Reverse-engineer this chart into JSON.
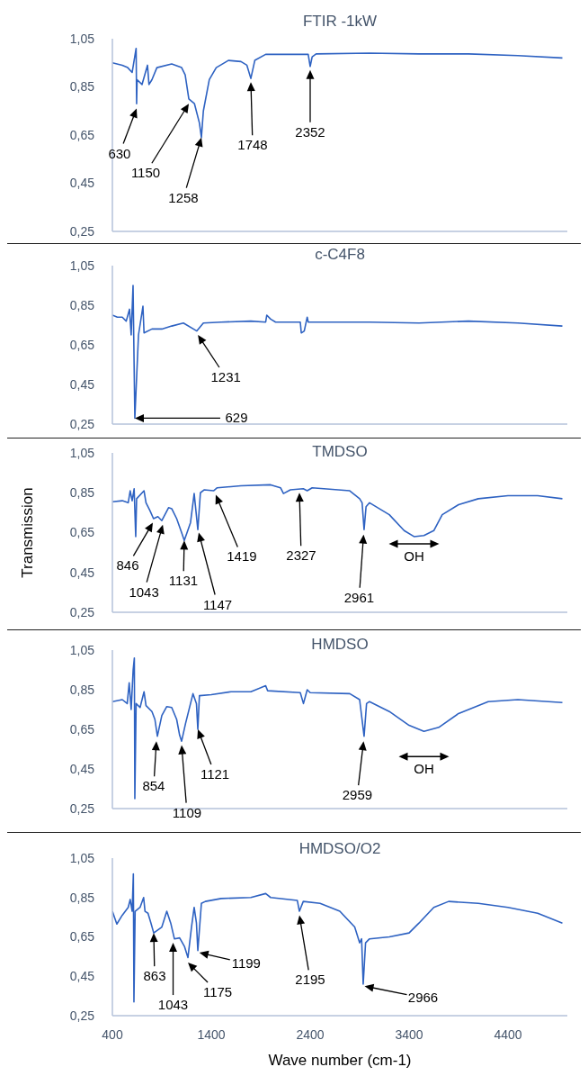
{
  "chart_data": [
    {
      "type": "line",
      "title": "FTIR -1kW",
      "color": "#2e62c2",
      "marker": "none",
      "line_style": "solid",
      "tick_labels": "y",
      "x": [
        400,
        500,
        555,
        600,
        640,
        645,
        650,
        700,
        755,
        770,
        800,
        850,
        1000,
        1100,
        1136,
        1173,
        1230,
        1280,
        1300,
        1320,
        1380,
        1450,
        1573,
        1700,
        1760,
        1800,
        1840,
        1950,
        2380,
        2400,
        2420,
        2460,
        3000,
        3500,
        4000,
        4500,
        4950
      ],
      "values": [
        0.95,
        0.94,
        0.93,
        0.91,
        1.01,
        0.78,
        0.88,
        0.86,
        0.94,
        0.86,
        0.88,
        0.93,
        0.945,
        0.93,
        0.9,
        0.8,
        0.78,
        0.7,
        0.64,
        0.75,
        0.88,
        0.93,
        0.96,
        0.955,
        0.94,
        0.885,
        0.96,
        0.985,
        0.985,
        0.935,
        0.975,
        0.987,
        0.99,
        0.987,
        0.987,
        0.98,
        0.97
      ],
      "xlim": [
        400,
        5000
      ],
      "ylim": [
        0.25,
        1.05
      ],
      "yticks": [
        {
          "value": 0.25,
          "label": "0,25"
        },
        {
          "value": 0.45,
          "label": "0,45"
        },
        {
          "value": 0.65,
          "label": "0,65"
        },
        {
          "value": 0.85,
          "label": "0,85"
        },
        {
          "value": 1.05,
          "label": "1,05"
        }
      ],
      "annotations": [
        {
          "text": "630",
          "x": 645,
          "y": 0.76
        },
        {
          "text": "1150",
          "x": 1173,
          "y": 0.78
        },
        {
          "text": "1258",
          "x": 1300,
          "y": 0.64
        },
        {
          "text": "1748",
          "x": 1800,
          "y": 0.87
        },
        {
          "text": "2352",
          "x": 2400,
          "y": 0.92
        }
      ]
    },
    {
      "type": "line",
      "title": "c-C4F8",
      "color": "#2e62c2",
      "marker": "none",
      "line_style": "solid",
      "tick_labels": "y",
      "x": [
        400,
        450,
        500,
        540,
        573,
        590,
        609,
        627,
        664,
        709,
        720,
        800,
        900,
        1000,
        1118,
        1254,
        1320,
        1500,
        1800,
        1950,
        1961,
        2000,
        2050,
        2300,
        2310,
        2340,
        2370,
        2380,
        3000,
        3500,
        4000,
        4500,
        4950
      ],
      "values": [
        0.8,
        0.79,
        0.79,
        0.77,
        0.83,
        0.7,
        0.95,
        0.28,
        0.7,
        0.845,
        0.71,
        0.73,
        0.73,
        0.745,
        0.76,
        0.72,
        0.76,
        0.765,
        0.77,
        0.765,
        0.8,
        0.78,
        0.765,
        0.765,
        0.71,
        0.72,
        0.79,
        0.765,
        0.765,
        0.76,
        0.77,
        0.76,
        0.745
      ],
      "xlim": [
        400,
        5000
      ],
      "ylim": [
        0.25,
        1.05
      ],
      "yticks": [
        {
          "value": 0.25,
          "label": "0,25"
        },
        {
          "value": 0.45,
          "label": "0,45"
        },
        {
          "value": 0.65,
          "label": "0,65"
        },
        {
          "value": 0.85,
          "label": "0,85"
        },
        {
          "value": 1.05,
          "label": "1,05"
        }
      ],
      "annotations": [
        {
          "text": "1231",
          "x": 1265,
          "y": 0.7
        },
        {
          "text": "629",
          "x": 627,
          "y": 0.28
        }
      ]
    },
    {
      "type": "line",
      "title": "TMDSO",
      "ylabel": "Transmission",
      "color": "#2e62c2",
      "marker": "none",
      "line_style": "solid",
      "tick_labels": "y",
      "x": [
        400,
        500,
        560,
        580,
        600,
        620,
        636,
        645,
        720,
        740,
        780,
        816,
        860,
        900,
        968,
        1000,
        1050,
        1100,
        1127,
        1190,
        1227,
        1264,
        1290,
        1330,
        1423,
        1460,
        1700,
        2000,
        2100,
        2130,
        2200,
        2330,
        2370,
        2420,
        2800,
        2900,
        2925,
        2945,
        2965,
        3000,
        3200,
        3350,
        3450,
        3550,
        3650,
        3735,
        3900,
        4100,
        4400,
        4700,
        4950
      ],
      "values": [
        0.805,
        0.81,
        0.8,
        0.86,
        0.81,
        0.87,
        0.63,
        0.82,
        0.86,
        0.8,
        0.76,
        0.72,
        0.73,
        0.71,
        0.775,
        0.77,
        0.72,
        0.65,
        0.61,
        0.7,
        0.846,
        0.665,
        0.85,
        0.865,
        0.86,
        0.875,
        0.885,
        0.89,
        0.875,
        0.846,
        0.865,
        0.87,
        0.86,
        0.875,
        0.86,
        0.82,
        0.8,
        0.665,
        0.78,
        0.8,
        0.74,
        0.66,
        0.63,
        0.635,
        0.66,
        0.74,
        0.79,
        0.82,
        0.835,
        0.835,
        0.82
      ],
      "xlim": [
        400,
        5000
      ],
      "ylim": [
        0.25,
        1.05
      ],
      "yticks": [
        {
          "value": 0.25,
          "label": "0,25"
        },
        {
          "value": 0.45,
          "label": "0,45"
        },
        {
          "value": 0.65,
          "label": "0,65"
        },
        {
          "value": 0.85,
          "label": "0,85"
        },
        {
          "value": 1.05,
          "label": "1,05"
        }
      ],
      "annotations": [
        {
          "text": "846",
          "x": 809,
          "y": 0.7
        },
        {
          "text": "1043",
          "x": 910,
          "y": 0.69
        },
        {
          "text": "1131",
          "x": 1127,
          "y": 0.61
        },
        {
          "text": "1147",
          "x": 1273,
          "y": 0.65
        },
        {
          "text": "1419",
          "x": 1445,
          "y": 0.84
        },
        {
          "text": "2327",
          "x": 2291,
          "y": 0.85
        },
        {
          "text": "2961",
          "x": 2940,
          "y": 0.64
        },
        {
          "text": "OH",
          "x": 3450,
          "y": 0.63
        }
      ]
    },
    {
      "type": "line",
      "title": "HMDSO",
      "color": "#2e62c2",
      "marker": "none",
      "line_style": "solid",
      "tick_labels": "y",
      "x": [
        400,
        500,
        550,
        570,
        590,
        610,
        622,
        627,
        640,
        680,
        720,
        740,
        800,
        830,
        855,
        900,
        950,
        1000,
        1050,
        1080,
        1100,
        1140,
        1215,
        1250,
        1264,
        1280,
        1400,
        1600,
        1800,
        1950,
        1970,
        2300,
        2332,
        2370,
        2400,
        2800,
        2900,
        2945,
        2970,
        3000,
        3200,
        3400,
        3550,
        3700,
        3900,
        4200,
        4500,
        4950
      ],
      "values": [
        0.79,
        0.8,
        0.78,
        0.885,
        0.75,
        0.95,
        1.01,
        0.3,
        0.78,
        0.76,
        0.84,
        0.77,
        0.74,
        0.7,
        0.615,
        0.72,
        0.765,
        0.76,
        0.7,
        0.62,
        0.59,
        0.68,
        0.83,
        0.78,
        0.65,
        0.82,
        0.825,
        0.84,
        0.84,
        0.87,
        0.845,
        0.835,
        0.78,
        0.85,
        0.835,
        0.83,
        0.8,
        0.615,
        0.78,
        0.79,
        0.74,
        0.67,
        0.64,
        0.66,
        0.73,
        0.79,
        0.8,
        0.785
      ],
      "xlim": [
        400,
        5000
      ],
      "ylim": [
        0.25,
        1.05
      ],
      "yticks": [
        {
          "value": 0.25,
          "label": "0,25"
        },
        {
          "value": 0.45,
          "label": "0,45"
        },
        {
          "value": 0.65,
          "label": "0,65"
        },
        {
          "value": 0.85,
          "label": "0,85"
        },
        {
          "value": 1.05,
          "label": "1,05"
        }
      ],
      "annotations": [
        {
          "text": "854",
          "x": 845,
          "y": 0.59
        },
        {
          "text": "1109",
          "x": 1100,
          "y": 0.57
        },
        {
          "text": "1121",
          "x": 1264,
          "y": 0.65
        },
        {
          "text": "2959",
          "x": 2940,
          "y": 0.59
        },
        {
          "text": "OH",
          "x": 3550,
          "y": 0.64
        }
      ]
    },
    {
      "type": "line",
      "title": "HMDSO/O2",
      "xlabel": "Wave number (cm-1)",
      "color": "#2e62c2",
      "marker": "none",
      "line_style": "solid",
      "x": [
        400,
        445,
        500,
        560,
        580,
        600,
        612,
        618,
        630,
        680,
        716,
        730,
        760,
        790,
        818,
        900,
        950,
        990,
        1027,
        1080,
        1130,
        1164,
        1200,
        1227,
        1250,
        1264,
        1300,
        1340,
        1500,
        1800,
        1950,
        2000,
        2270,
        2291,
        2330,
        2500,
        2700,
        2850,
        2900,
        2920,
        2936,
        2960,
        3000,
        3200,
        3400,
        3500,
        3650,
        3800,
        4100,
        4400,
        4700,
        4950
      ],
      "values": [
        0.78,
        0.715,
        0.76,
        0.8,
        0.84,
        0.78,
        0.97,
        0.32,
        0.78,
        0.8,
        0.85,
        0.78,
        0.77,
        0.72,
        0.67,
        0.7,
        0.78,
        0.72,
        0.64,
        0.645,
        0.6,
        0.545,
        0.7,
        0.8,
        0.72,
        0.58,
        0.82,
        0.83,
        0.845,
        0.85,
        0.87,
        0.85,
        0.835,
        0.78,
        0.83,
        0.82,
        0.78,
        0.7,
        0.62,
        0.64,
        0.41,
        0.62,
        0.64,
        0.65,
        0.67,
        0.72,
        0.8,
        0.83,
        0.82,
        0.8,
        0.77,
        0.72
      ],
      "xlim": [
        400,
        5000
      ],
      "xticks": [
        400,
        1400,
        2400,
        3400,
        4400
      ],
      "ylim": [
        0.25,
        1.05
      ],
      "yticks": [
        {
          "value": 0.25,
          "label": "0,25"
        },
        {
          "value": 0.45,
          "label": "0,45"
        },
        {
          "value": 0.65,
          "label": "0,65"
        },
        {
          "value": 0.85,
          "label": "0,85"
        },
        {
          "value": 1.05,
          "label": "1,05"
        }
      ],
      "annotations": [
        {
          "text": "863",
          "x": 818,
          "y": 0.67
        },
        {
          "text": "1043",
          "x": 1014,
          "y": 0.62
        },
        {
          "text": "1175",
          "x": 1164,
          "y": 0.52
        },
        {
          "text": "1199",
          "x": 1280,
          "y": 0.57
        },
        {
          "text": "2195",
          "x": 2291,
          "y": 0.76
        },
        {
          "text": "2966",
          "x": 2950,
          "y": 0.4
        }
      ]
    }
  ]
}
